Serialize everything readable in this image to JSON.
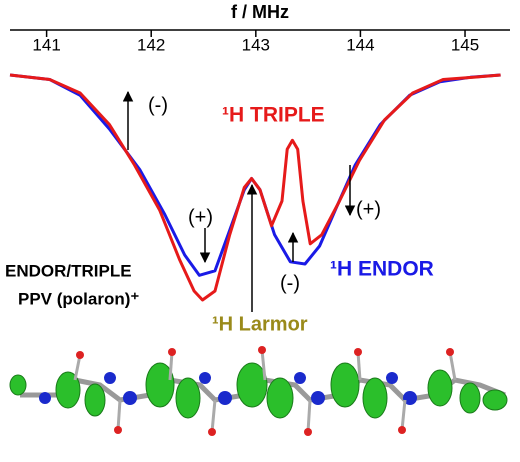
{
  "chart_data": {
    "type": "line",
    "x_label": "f / MHz",
    "xlim": [
      140.65,
      145.43
    ],
    "xticks": [
      141,
      142,
      143,
      144,
      145
    ],
    "ylim": [
      -1,
      0
    ],
    "series": [
      {
        "name": "¹H ENDOR",
        "color": "#1a1ae6",
        "x": [
          140.65,
          141.03,
          141.32,
          141.6,
          141.89,
          142.13,
          142.32,
          142.46,
          142.61,
          142.75,
          142.89,
          142.96,
          143.04,
          143.18,
          143.33,
          143.47,
          143.61,
          143.76,
          143.95,
          144.19,
          144.47,
          144.76,
          145.05,
          145.34
        ],
        "values": [
          0,
          -0.02,
          -0.09,
          -0.24,
          -0.42,
          -0.62,
          -0.8,
          -0.89,
          -0.87,
          -0.69,
          -0.51,
          -0.46,
          -0.51,
          -0.71,
          -0.83,
          -0.84,
          -0.76,
          -0.6,
          -0.4,
          -0.22,
          -0.09,
          -0.03,
          -0.01,
          0
        ]
      },
      {
        "name": "¹H TRIPLE",
        "color": "#e61a1a",
        "x": [
          140.65,
          141.03,
          141.32,
          141.6,
          141.84,
          142.08,
          142.27,
          142.41,
          142.49,
          142.61,
          142.75,
          142.89,
          142.96,
          143.04,
          143.15,
          143.25,
          143.3,
          143.35,
          143.4,
          143.45,
          143.52,
          143.63,
          143.8,
          143.99,
          144.23,
          144.5,
          144.79,
          145.08,
          145.34
        ],
        "values": [
          0,
          -0.02,
          -0.08,
          -0.22,
          -0.4,
          -0.6,
          -0.82,
          -0.96,
          -1,
          -0.96,
          -0.71,
          -0.5,
          -0.46,
          -0.51,
          -0.67,
          -0.56,
          -0.33,
          -0.29,
          -0.33,
          -0.56,
          -0.75,
          -0.71,
          -0.56,
          -0.38,
          -0.2,
          -0.08,
          -0.02,
          -0.01,
          0
        ]
      }
    ],
    "annotations": [
      "(-)",
      "(+)",
      "(+)",
      "(-)",
      "ENDOR/TRIPLE",
      "PPV (polaron)⁺",
      "¹H Larmor"
    ]
  }
}
